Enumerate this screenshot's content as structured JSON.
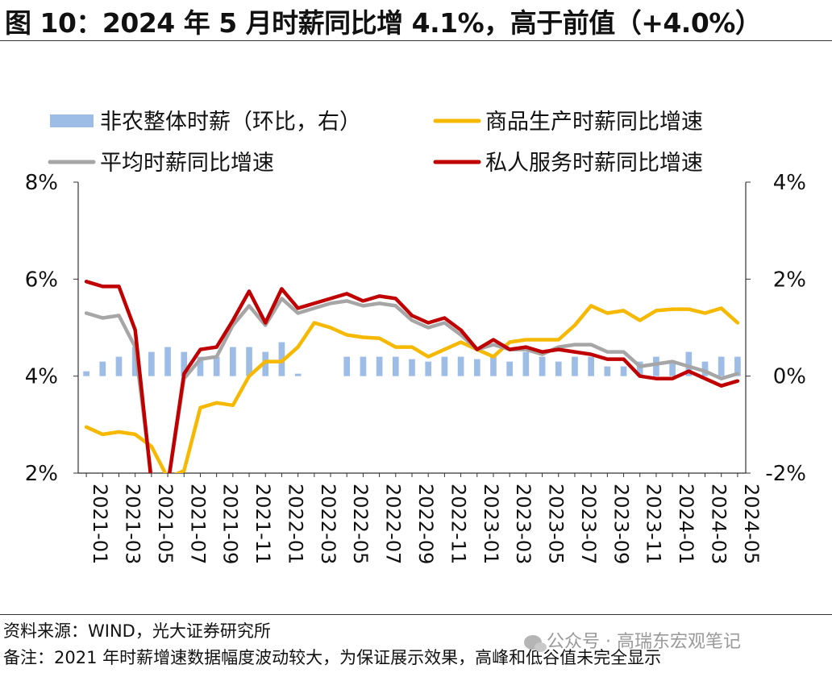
{
  "title": "图 10：2024 年 5 月时薪同比增 4.1%，高于前值（+4.0%）",
  "footer": {
    "source": "资料来源：WIND，光大证券研究所",
    "note": "备注：2021 年时薪增速数据幅度波动较大，为保证展示效果，高峰和低谷值未完全显示",
    "watermark": "公众号 · 高瑞东宏观笔记"
  },
  "chart_data": {
    "type": "bar+line",
    "x": [
      "2021-01",
      "2021-02",
      "2021-03",
      "2021-04",
      "2021-05",
      "2021-06",
      "2021-07",
      "2021-08",
      "2021-09",
      "2021-10",
      "2021-11",
      "2021-12",
      "2022-01",
      "2022-02",
      "2022-03",
      "2022-04",
      "2022-05",
      "2022-06",
      "2022-07",
      "2022-08",
      "2022-09",
      "2022-10",
      "2022-11",
      "2022-12",
      "2023-01",
      "2023-02",
      "2023-03",
      "2023-04",
      "2023-05",
      "2023-06",
      "2023-07",
      "2023-08",
      "2023-09",
      "2023-10",
      "2023-11",
      "2023-12",
      "2024-01",
      "2024-02",
      "2024-03",
      "2024-04",
      "2024-05"
    ],
    "x_tick_labels": [
      "2021-01",
      "2021-03",
      "2021-05",
      "2021-07",
      "2021-09",
      "2021-11",
      "2022-01",
      "2022-03",
      "2022-05",
      "2022-07",
      "2022-09",
      "2022-11",
      "2023-01",
      "2023-03",
      "2023-05",
      "2023-07",
      "2023-09",
      "2023-11",
      "2024-01",
      "2024-03",
      "2024-05"
    ],
    "y_left": {
      "ticks": [
        "8%",
        "6%",
        "4%",
        "2%"
      ],
      "min": 2,
      "max": 8
    },
    "y_right": {
      "ticks": [
        "4%",
        "2%",
        "0%",
        "-2%"
      ],
      "min": -2,
      "max": 4
    },
    "legend": [
      "非农整体时薪（环比，右）",
      "商品生产时薪同比增速",
      "平均时薪同比增速",
      "私人服务时薪同比增速"
    ],
    "colors": {
      "bar": "#9dbde6",
      "goods": "#f6b800",
      "avg": "#a6a6a6",
      "services": "#c00000"
    },
    "series": [
      {
        "name": "非农整体时薪（环比，右）",
        "kind": "bar",
        "axis": "right",
        "values": [
          0.1,
          0.3,
          0.4,
          0.6,
          0.5,
          0.6,
          0.5,
          0.4,
          0.4,
          0.6,
          0.6,
          0.5,
          0.7,
          0.05,
          null,
          null,
          0.4,
          0.4,
          0.4,
          0.4,
          0.35,
          0.3,
          0.4,
          0.4,
          0.35,
          0.4,
          0.3,
          0.5,
          0.4,
          0.3,
          0.4,
          0.4,
          0.2,
          0.2,
          0.3,
          0.4,
          0.3,
          0.5,
          0.3,
          0.4,
          0.4
        ]
      },
      {
        "name": "商品生产时薪同比增速",
        "kind": "line",
        "axis": "left",
        "values": [
          2.95,
          2.8,
          2.85,
          2.8,
          2.55,
          1.9,
          2.05,
          3.35,
          3.45,
          3.4,
          4.0,
          4.3,
          4.3,
          4.6,
          5.1,
          5.0,
          4.85,
          4.8,
          4.78,
          4.6,
          4.6,
          4.4,
          4.55,
          4.7,
          4.55,
          4.4,
          4.7,
          4.75,
          4.75,
          4.75,
          5.05,
          5.45,
          5.3,
          5.35,
          5.15,
          5.35,
          5.38,
          5.38,
          5.3,
          5.4,
          5.1
        ]
      },
      {
        "name": "平均时薪同比增速",
        "kind": "line",
        "axis": "left",
        "values": [
          5.3,
          5.2,
          5.25,
          4.6,
          1.9,
          1.75,
          3.95,
          4.35,
          4.4,
          5.05,
          5.45,
          5.05,
          5.6,
          5.3,
          5.4,
          5.5,
          5.55,
          5.45,
          5.5,
          5.45,
          5.15,
          5.0,
          5.1,
          4.85,
          4.55,
          4.65,
          4.55,
          4.55,
          4.45,
          4.6,
          4.65,
          4.65,
          4.5,
          4.5,
          4.2,
          4.25,
          4.3,
          4.2,
          4.1,
          3.95,
          4.05
        ]
      },
      {
        "name": "私人服务时薪同比增速",
        "kind": "line",
        "axis": "left",
        "values": [
          5.95,
          5.85,
          5.85,
          4.95,
          1.8,
          1.75,
          4.05,
          4.55,
          4.6,
          5.15,
          5.75,
          5.1,
          5.8,
          5.4,
          5.5,
          5.6,
          5.7,
          5.55,
          5.65,
          5.6,
          5.25,
          5.1,
          5.2,
          4.95,
          4.55,
          4.75,
          4.55,
          4.6,
          4.5,
          4.55,
          4.5,
          4.45,
          4.35,
          4.35,
          4.0,
          3.95,
          3.95,
          4.1,
          3.95,
          3.8,
          3.9
        ]
      }
    ]
  }
}
